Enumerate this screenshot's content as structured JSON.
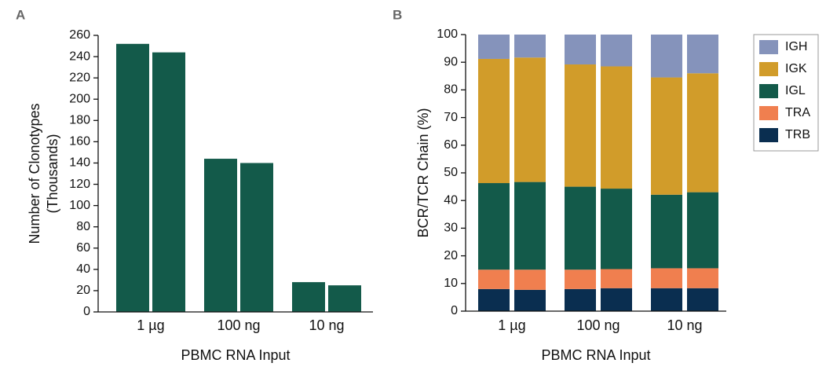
{
  "chart_data": [
    {
      "type": "bar",
      "panel_label": "A",
      "y_label": [
        "Number of Clonotypes",
        "(Thousands)"
      ],
      "x_label": "PBMC RNA Input",
      "categories": [
        "1 µg",
        null,
        "100 ng",
        null,
        "10 ng",
        null
      ],
      "values": [
        252,
        244,
        144,
        140,
        28,
        25
      ],
      "color": "#135a4a",
      "ylim": [
        0,
        260
      ],
      "yticks": [
        0,
        20,
        40,
        60,
        80,
        100,
        120,
        140,
        160,
        180,
        200,
        220,
        240,
        260
      ]
    },
    {
      "type": "stacked_bar",
      "panel_label": "B",
      "y_label": [
        "BCR/TCR Chain (%)"
      ],
      "x_label": "PBMC RNA Input",
      "categories": [
        "1 µg",
        null,
        "100 ng",
        null,
        "10 ng",
        null
      ],
      "series": [
        {
          "name": "IGH",
          "color": "#8593bb",
          "values": [
            8.8,
            8.3,
            10.8,
            11.5,
            15.5,
            14
          ]
        },
        {
          "name": "IGK",
          "color": "#d19c2a",
          "values": [
            44.9,
            45,
            44.2,
            44.2,
            42.4,
            43
          ]
        },
        {
          "name": "IGL",
          "color": "#135a4a",
          "values": [
            31.3,
            31.7,
            30,
            29.1,
            26.6,
            27.5
          ]
        },
        {
          "name": "TRA",
          "color": "#f07f4f",
          "values": [
            7,
            7.3,
            7,
            6.9,
            7.2,
            7.2
          ]
        },
        {
          "name": "TRB",
          "color": "#0a2e50",
          "values": [
            8,
            7.7,
            8,
            8.3,
            8.3,
            8.3
          ]
        }
      ],
      "legend": "right",
      "ylim": [
        0,
        100
      ],
      "yticks": [
        0,
        10,
        20,
        30,
        40,
        50,
        60,
        70,
        80,
        90,
        100
      ]
    }
  ]
}
